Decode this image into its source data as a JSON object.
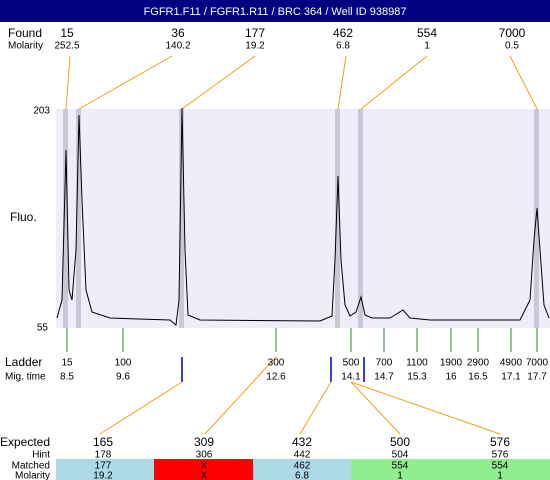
{
  "header": {
    "title": "FGFR1.F11 / FGFR1.R11 / BRC 364 / Well ID 938987"
  },
  "found": {
    "label": "Found",
    "values": [
      15,
      36,
      177,
      462,
      554,
      7000
    ],
    "molarity_label": "Molarity",
    "molarity": [
      252.5,
      140.2,
      19.2,
      6.8,
      1,
      0.5
    ]
  },
  "plot": {
    "ymax_label": "203",
    "ymin_label": "55",
    "ylabel": "Fluo."
  },
  "ladder": {
    "label": "Ladder",
    "sizes": [
      15,
      100,
      300,
      500,
      700,
      1100,
      1900,
      2900,
      4900,
      7000
    ],
    "time_label": "Mig. time",
    "times": [
      8.5,
      9.6,
      12.6,
      14.1,
      14.7,
      15.3,
      16,
      16.5,
      17.1,
      17.7
    ]
  },
  "results": {
    "expected_label": "Expected",
    "expected": [
      165,
      309,
      432,
      500,
      576
    ],
    "hint_label": "Hint",
    "hint": [
      178,
      306,
      442,
      504,
      576
    ],
    "matched_label": "Matched",
    "matched": [
      177,
      "X",
      462,
      554,
      554
    ],
    "molarity_label": "Molarity",
    "molarity": [
      19.2,
      "X",
      6.8,
      1,
      1
    ]
  }
}
